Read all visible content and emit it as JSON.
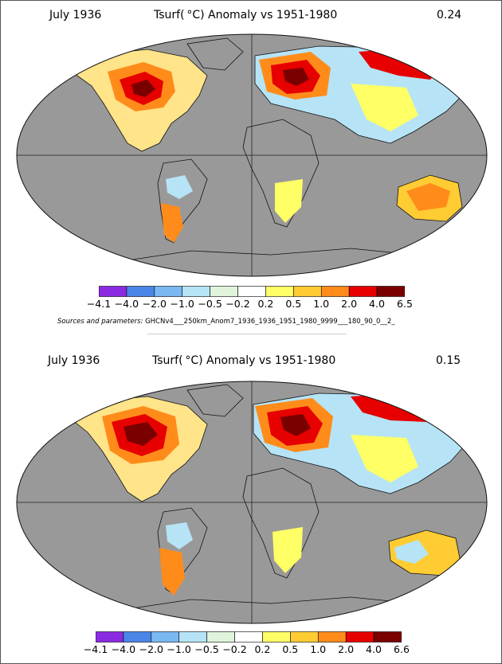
{
  "palette": {
    "ocean": "#999999",
    "land_outline": "#111111",
    "scale_colors": [
      "#8a2be2",
      "#4a86e8",
      "#7ab8f2",
      "#b6e4f6",
      "#e0f4dc",
      "#ffffff",
      "#ffff66",
      "#ffcc33",
      "#ff8c1a",
      "#e60000",
      "#7a0000"
    ]
  },
  "panels": [
    {
      "date": "July 1936",
      "title": "Tsurf( °C) Anomaly vs 1951-1980",
      "mean": "0.24",
      "scale_labels": [
        "−4.1",
        "−4.0",
        "−2.0",
        "−1.0",
        "−0.5",
        "−0.2",
        "0.2",
        "0.5",
        "1.0",
        "2.0",
        "4.0",
        "6.5"
      ]
    },
    {
      "date": "July 1936",
      "title": "Tsurf( °C) Anomaly vs 1951-1980",
      "mean": "0.15",
      "scale_labels": [
        "−4.1",
        "−4.0",
        "−2.0",
        "−1.0",
        "−0.5",
        "−0.2",
        "0.2",
        "0.5",
        "1.0",
        "2.0",
        "4.0",
        "6.6"
      ]
    }
  ],
  "sources": {
    "label": "Sources and parameters:",
    "value": "GHCNv4___250km_Anom7_1936_1936_1951_1980_9999___180_90_0__2_"
  }
}
